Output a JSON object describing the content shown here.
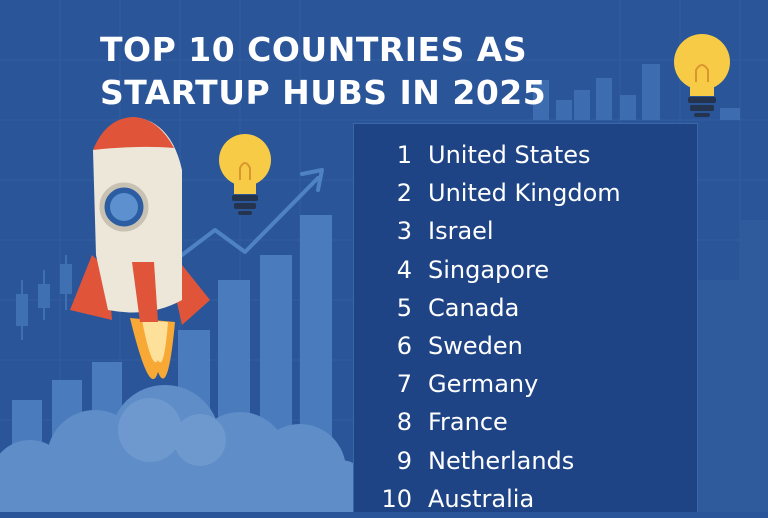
{
  "title": {
    "line1": "TOP 10 COUNTRIES AS",
    "line2": "STARTUP HUBS IN 2025"
  },
  "ranking": [
    {
      "rank": "1",
      "country": "United States"
    },
    {
      "rank": "2",
      "country": "United Kingdom"
    },
    {
      "rank": "3",
      "country": "Israel"
    },
    {
      "rank": "4",
      "country": "Singapore"
    },
    {
      "rank": "5",
      "country": "Canada"
    },
    {
      "rank": "6",
      "country": "Sweden"
    },
    {
      "rank": "7",
      "country": "Germany"
    },
    {
      "rank": "8",
      "country": "France"
    },
    {
      "rank": "9",
      "country": "Netherlands"
    },
    {
      "rank": "10",
      "country": "Australia"
    }
  ],
  "colors": {
    "background": "#2a5599",
    "panel": "#1f4486",
    "text": "#ffffff",
    "bars": "#4d7dbd",
    "cloud": "#5f8dc8",
    "rocket_body": "#ede7da",
    "rocket_fins": "#e0553a",
    "flame": "#f7a835",
    "bulb": "#f7cb45"
  },
  "icons": [
    "rocket-icon",
    "lightbulb-icon",
    "trend-arrow-icon",
    "bar-chart-icon",
    "cloud-icon"
  ]
}
